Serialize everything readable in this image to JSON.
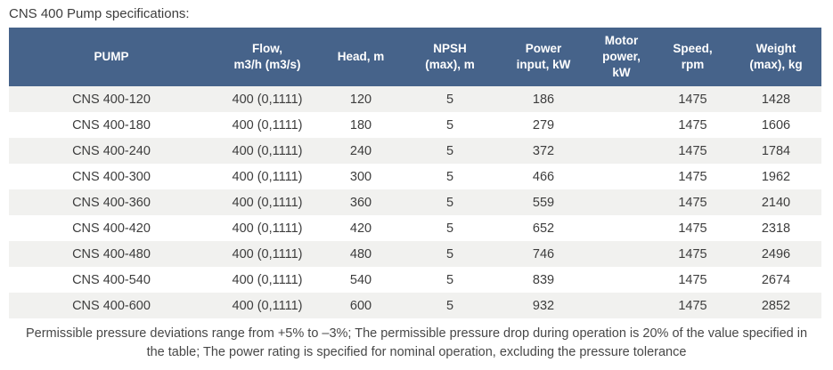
{
  "title": "CNS 400 Pump specifications:",
  "table": {
    "columns": [
      {
        "label": "PUMP"
      },
      {
        "label": "Flow,\nm3/h (m3/s)"
      },
      {
        "label": "Head, m"
      },
      {
        "label": "NPSH\n(max), m"
      },
      {
        "label": "Power\ninput, kW"
      },
      {
        "label": "Motor\npower,\nkW"
      },
      {
        "label": "Speed,\nrpm"
      },
      {
        "label": "Weight\n(max), kg"
      }
    ],
    "rows": [
      [
        "CNS 400-120",
        "400 (0,1111)",
        "120",
        "5",
        "186",
        "",
        "1475",
        "1428"
      ],
      [
        "CNS 400-180",
        "400 (0,1111)",
        "180",
        "5",
        "279",
        "",
        "1475",
        "1606"
      ],
      [
        "CNS 400-240",
        "400 (0,1111)",
        "240",
        "5",
        "372",
        "",
        "1475",
        "1784"
      ],
      [
        "CNS 400-300",
        "400 (0,1111)",
        "300",
        "5",
        "466",
        "",
        "1475",
        "1962"
      ],
      [
        "CNS 400-360",
        "400 (0,1111)",
        "360",
        "5",
        "559",
        "",
        "1475",
        "2140"
      ],
      [
        "CNS 400-420",
        "400 (0,1111)",
        "420",
        "5",
        "652",
        "",
        "1475",
        "2318"
      ],
      [
        "CNS 400-480",
        "400 (0,1111)",
        "480",
        "5",
        "746",
        "",
        "1475",
        "2496"
      ],
      [
        "CNS 400-540",
        "400 (0,1111)",
        "540",
        "5",
        "839",
        "",
        "1475",
        "2674"
      ],
      [
        "CNS 400-600",
        "400 (0,1111)",
        "600",
        "5",
        "932",
        "",
        "1475",
        "2852"
      ]
    ]
  },
  "footnote": "Permissible pressure deviations range from +5% to –3%; The permissible pressure drop during operation is 20% of the value specified in the table; The power rating is specified for nominal operation, excluding the pressure tolerance",
  "colors": {
    "header_bg": "#46638a",
    "header_text": "#ffffff",
    "row_stripe": "#f1f1ef",
    "body_text": "#3d3d3d",
    "footnote_text": "#474747"
  }
}
